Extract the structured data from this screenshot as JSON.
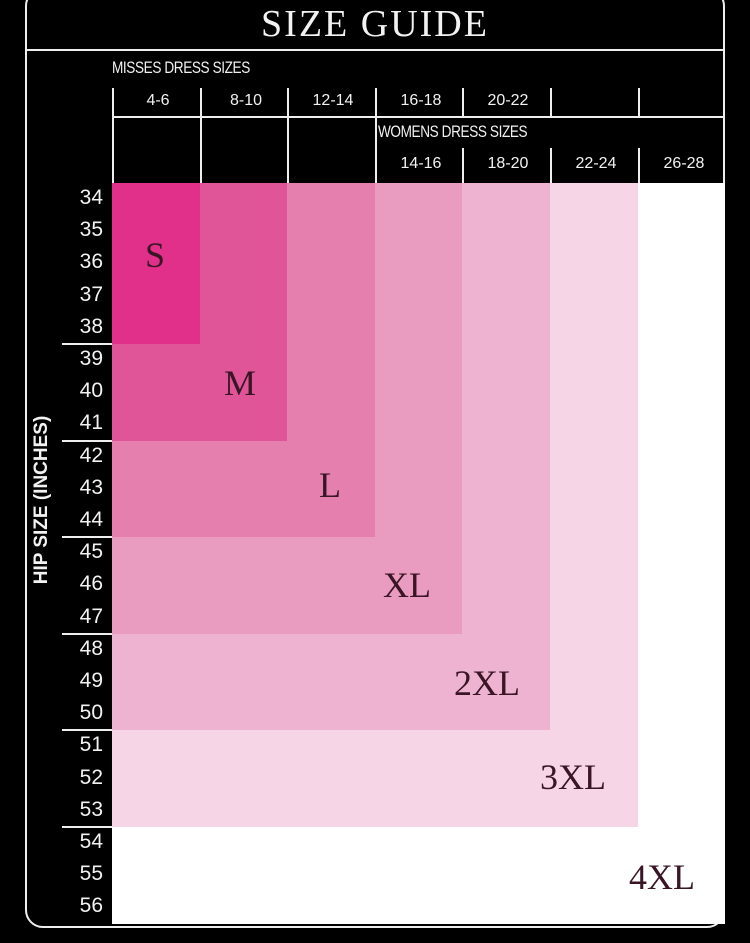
{
  "title": "SIZE GUIDE",
  "misses_label": "MISSES DRESS SIZES",
  "misses_sizes": [
    "4-6",
    "8-10",
    "12-14",
    "16-18",
    "20-22"
  ],
  "womens_label": "WOMENS DRESS SIZES",
  "womens_sizes": [
    "14-16",
    "18-20",
    "22-24",
    "26-28"
  ],
  "axis_label": "HIP SIZE (INCHES)",
  "hip_sizes": [
    "34",
    "35",
    "36",
    "37",
    "38",
    "39",
    "40",
    "41",
    "42",
    "43",
    "44",
    "45",
    "46",
    "47",
    "48",
    "49",
    "50",
    "51",
    "52",
    "53",
    "54",
    "55",
    "56"
  ],
  "sizes": [
    {
      "label": "S",
      "columns": 1,
      "max_hip": 38,
      "color": "#e0308a"
    },
    {
      "label": "M",
      "columns": 2,
      "max_hip": 41,
      "color": "#e05598"
    },
    {
      "label": "L",
      "columns": 3,
      "max_hip": 44,
      "color": "#e57fae"
    },
    {
      "label": "XL",
      "columns": 4,
      "max_hip": 47,
      "color": "#e99bc0"
    },
    {
      "label": "2XL",
      "columns": 5,
      "max_hip": 50,
      "color": "#eeb3d0"
    },
    {
      "label": "3XL",
      "columns": 6,
      "max_hip": 53,
      "color": "#f5d5e6"
    },
    {
      "label": "4XL",
      "columns": 7,
      "max_hip": 56,
      "color": "#ffffff"
    }
  ]
}
